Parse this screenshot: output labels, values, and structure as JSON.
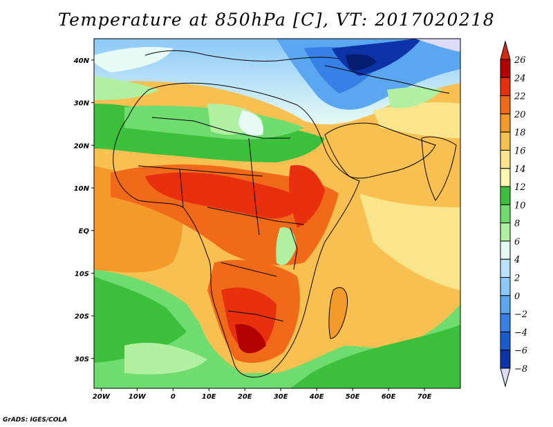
{
  "title": "Temperature at 850hPa [C], VT: 2017020218",
  "credit": "GrADS: IGES/COLA",
  "map": {
    "lon_range": [
      -22,
      80
    ],
    "lat_range": [
      -37,
      45
    ],
    "x_ticks": [
      {
        "lon": -20,
        "label": "20W"
      },
      {
        "lon": -10,
        "label": "10W"
      },
      {
        "lon": 0,
        "label": "0"
      },
      {
        "lon": 10,
        "label": "10E"
      },
      {
        "lon": 20,
        "label": "20E"
      },
      {
        "lon": 30,
        "label": "30E"
      },
      {
        "lon": 40,
        "label": "40E"
      },
      {
        "lon": 50,
        "label": "50E"
      },
      {
        "lon": 60,
        "label": "60E"
      },
      {
        "lon": 70,
        "label": "70E"
      }
    ],
    "y_ticks": [
      {
        "lat": 40,
        "label": "40N"
      },
      {
        "lat": 30,
        "label": "30N"
      },
      {
        "lat": 20,
        "label": "20N"
      },
      {
        "lat": 10,
        "label": "10N"
      },
      {
        "lat": 0,
        "label": "EQ"
      },
      {
        "lat": -10,
        "label": "10S"
      },
      {
        "lat": -20,
        "label": "20S"
      },
      {
        "lat": -30,
        "label": "30S"
      }
    ]
  },
  "colorbar": {
    "levels": [
      {
        "value": 26,
        "label": "26",
        "color": "#b30000"
      },
      {
        "value": 24,
        "label": "24",
        "color": "#e8300f"
      },
      {
        "value": 22,
        "label": "22",
        "color": "#f06a1a"
      },
      {
        "value": 20,
        "label": "20",
        "color": "#f49a2a"
      },
      {
        "value": 18,
        "label": "18",
        "color": "#f8c050"
      },
      {
        "value": 16,
        "label": "16",
        "color": "#fbe58c"
      },
      {
        "value": 14,
        "label": "14",
        "color": "#fff7b0"
      },
      {
        "value": 12,
        "label": "12",
        "color": "#3cc03c"
      },
      {
        "value": 10,
        "label": "10",
        "color": "#6fdc6f"
      },
      {
        "value": 8,
        "label": "8",
        "color": "#b0f0a0"
      },
      {
        "value": 6,
        "label": "6",
        "color": "#e6fbf4"
      },
      {
        "value": 4,
        "label": "4",
        "color": "#b9e3fb"
      },
      {
        "value": 2,
        "label": "2",
        "color": "#8cc8f8"
      },
      {
        "value": 0,
        "label": "0",
        "color": "#5aa6f0"
      },
      {
        "value": -2,
        "label": "−2",
        "color": "#3680e6"
      },
      {
        "value": -4,
        "label": "−4",
        "color": "#1a5cd0"
      },
      {
        "value": -6,
        "label": "−6",
        "color": "#0c34a8"
      },
      {
        "value": -8,
        "label": "−8",
        "color": "#061d70"
      }
    ],
    "above_color": "#d42a12",
    "below_color": "#dcdcf8"
  }
}
